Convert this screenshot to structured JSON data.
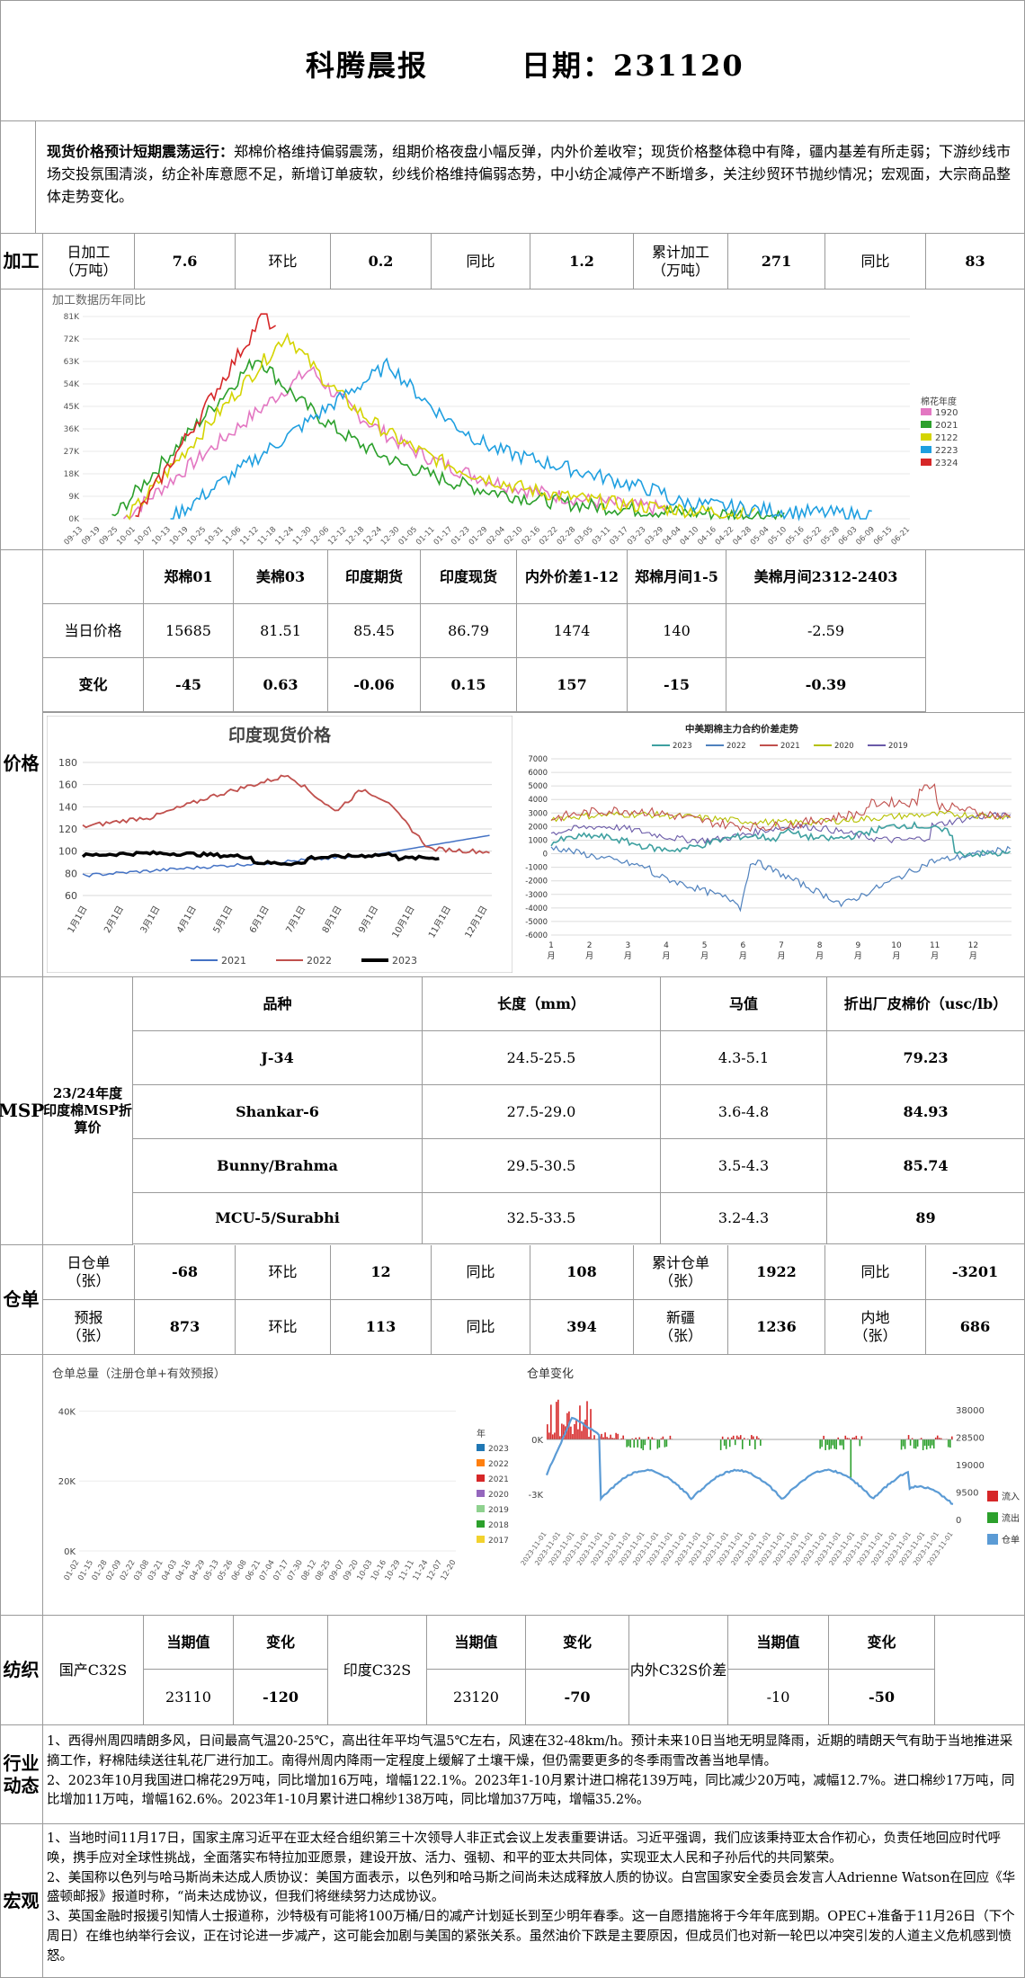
{
  "header": {
    "title": "科腾晨报",
    "date_label": "日期：231120"
  },
  "summary": {
    "lead": "现货价格预计短期震荡运行：",
    "text": "郑棉价格维持偏弱震荡，组期价格夜盘小幅反弹，内外价差收窄；现货价格整体稳中有降，疆内基差有所走弱；下游纱线市场交投氛围清淡，纺企补库意愿不足，新增订单疲软，纱线价格维持偏弱态势，中小纺企减停产不断增多，关注纱贸环节抛纱情况；宏观面，大宗商品整体走势变化。"
  },
  "processing": {
    "section": "加工",
    "cells": [
      "日加工\n（万吨）",
      "7.6",
      "环比",
      "0.2",
      "同比",
      "1.2",
      "累计加工\n（万吨）",
      "271",
      "同比",
      "83"
    ]
  },
  "processing_chart": {
    "title": "加工数据历年同比",
    "legend_title": "棉花年度",
    "y_ticks": [
      "81K",
      "72K",
      "63K",
      "54K",
      "45K",
      "36K",
      "27K",
      "18K",
      "9K",
      "0K"
    ],
    "x_ticks": [
      "09-13",
      "09-19",
      "09-25",
      "10-01",
      "10-07",
      "10-13",
      "10-19",
      "10-25",
      "10-31",
      "11-06",
      "11-12",
      "11-18",
      "11-24",
      "11-30",
      "12-06",
      "12-12",
      "12-18",
      "12-24",
      "12-30",
      "01-05",
      "01-11",
      "01-17",
      "01-23",
      "01-29",
      "02-04",
      "02-10",
      "02-16",
      "02-22",
      "02-28",
      "03-05",
      "03-11",
      "03-17",
      "03-23",
      "03-29",
      "04-04",
      "04-10",
      "04-16",
      "04-22",
      "04-28",
      "05-04",
      "05-10",
      "05-16",
      "05-22",
      "05-28",
      "06-03",
      "06-09",
      "06-15",
      "06-21"
    ],
    "series": [
      {
        "name": "1920",
        "color": "#e377c2"
      },
      {
        "name": "2021",
        "color": "#2ca02c"
      },
      {
        "name": "2122",
        "color": "#d4d400"
      },
      {
        "name": "2223",
        "color": "#1f9fe0"
      },
      {
        "name": "2324",
        "color": "#d62728"
      }
    ]
  },
  "price": {
    "section": "价格",
    "headers": [
      "",
      "郑棉01",
      "美棉03",
      "印度期货",
      "印度现货",
      "内外价差1-12",
      "郑棉月间1-5",
      "美棉月间2312-2403"
    ],
    "rows": [
      [
        "当日价格",
        "15685",
        "81.51",
        "85.45",
        "86.79",
        "1474",
        "140",
        "-2.59"
      ],
      [
        "变化",
        "-45",
        "0.63",
        "-0.06",
        "0.15",
        "157",
        "-15",
        "-0.39"
      ]
    ]
  },
  "india_chart": {
    "title": "印度现货价格",
    "y_ticks": [
      "180",
      "160",
      "140",
      "120",
      "100",
      "80",
      "60"
    ],
    "x_ticks": [
      "1月1日",
      "2月1日",
      "3月1日",
      "4月1日",
      "5月1日",
      "6月1日",
      "7月1日",
      "8月1日",
      "9月1日",
      "10月1日",
      "11月1日",
      "12月1日"
    ],
    "legend": [
      {
        "name": "2021",
        "color": "#4472c4"
      },
      {
        "name": "2022",
        "color": "#c0504d"
      },
      {
        "name": "2023",
        "color": "#000000"
      }
    ]
  },
  "spread_chart": {
    "title": "中美期棉主力合约价差走势",
    "legend": [
      {
        "name": "2023",
        "color": "#3ea0a0"
      },
      {
        "name": "2022",
        "color": "#4f81bd"
      },
      {
        "name": "2021",
        "color": "#c0504d"
      },
      {
        "name": "2020",
        "color": "#b5c000"
      },
      {
        "name": "2019",
        "color": "#6a5aa8"
      }
    ],
    "y_ticks": [
      "7000",
      "6000",
      "5000",
      "4000",
      "3000",
      "2000",
      "1000",
      "0",
      "-1000",
      "-2000",
      "-3000",
      "-4000",
      "-5000",
      "-6000"
    ],
    "x_ticks": [
      "1\n月",
      "2\n月",
      "3\n月",
      "4\n月",
      "5\n月",
      "6\n月",
      "7\n月",
      "8\n月",
      "9\n月",
      "10\n月",
      "11\n月",
      "12\n月"
    ]
  },
  "msp": {
    "section": "MSP",
    "label": "23/24年度\n印度棉MSP折\n算价",
    "headers": [
      "品种",
      "长度（mm）",
      "马值",
      "折出厂皮棉价（usc/lb）"
    ],
    "rows": [
      [
        "J-34",
        "24.5-25.5",
        "4.3-5.1",
        "79.23"
      ],
      [
        "Shankar-6",
        "27.5-29.0",
        "3.6-4.8",
        "84.93"
      ],
      [
        "Bunny/Brahma",
        "29.5-30.5",
        "3.5-4.3",
        "85.74"
      ],
      [
        "MCU-5/Surabhi",
        "32.5-33.5",
        "3.2-4.3",
        "89"
      ]
    ]
  },
  "warehouse": {
    "section": "仓单",
    "row1": [
      "日仓单\n（张）",
      "-68",
      "环比",
      "12",
      "同比",
      "108",
      "累计仓单\n（张）",
      "1922",
      "同比",
      "-3201"
    ],
    "row2": [
      "预报\n（张）",
      "873",
      "环比",
      "113",
      "同比",
      "394",
      "新疆\n（张）",
      "1236",
      "内地\n（张）",
      "686"
    ]
  },
  "warehouse_chart": {
    "title": "仓单总量（注册仓单+有效预报）",
    "legend_title": "年",
    "y_ticks": [
      "40K",
      "20K",
      "0K"
    ],
    "x_ticks": [
      "01-02",
      "01-15",
      "01-28",
      "02-09",
      "02-22",
      "03-08",
      "03-21",
      "04-03",
      "04-16",
      "04-29",
      "05-13",
      "05-26",
      "06-08",
      "06-21",
      "07-04",
      "07-17",
      "07-30",
      "08-12",
      "08-25",
      "09-07",
      "09-20",
      "10-03",
      "10-16",
      "10-29",
      "11-11",
      "11-24",
      "12-07",
      "12-20"
    ],
    "series": [
      {
        "name": "2023",
        "color": "#1f77b4"
      },
      {
        "name": "2022",
        "color": "#ff7f0e"
      },
      {
        "name": "2021",
        "color": "#d62728"
      },
      {
        "name": "2020",
        "color": "#9467bd"
      },
      {
        "name": "2019",
        "color": "#8fd18f"
      },
      {
        "name": "2018",
        "color": "#2ca02c"
      },
      {
        "name": "2017",
        "color": "#f2d22e"
      }
    ]
  },
  "change_chart": {
    "title": "仓单变化",
    "y_left": [
      "0K",
      "-3K"
    ],
    "y_right": [
      "38000",
      "28500",
      "19000",
      "9500",
      "0"
    ],
    "legend": [
      {
        "name": "流入",
        "color": "#d62728"
      },
      {
        "name": "流出",
        "color": "#2ca02c"
      },
      {
        "name": "仓单",
        "color": "#5b9bd5"
      }
    ]
  },
  "textile": {
    "section": "纺织",
    "labels": [
      "国产C32S",
      "印度C32S",
      "内外C32S价差"
    ],
    "headers": [
      "当期值",
      "变化",
      "当期值",
      "变化",
      "当期值",
      "变化"
    ],
    "values": [
      "23110",
      "-120",
      "23120",
      "-70",
      "-10",
      "-50"
    ]
  },
  "industry": {
    "section": "行业\n动态",
    "text": "1、西得州周四晴朗多风，日间最高气温20-25℃，高出往年平均气温5℃左右，风速在32-48km/h。预计未来10日当地无明显降雨，近期的晴朗天气有助于当地推进采摘工作，籽棉陆续送往轧花厂进行加工。南得州周内降雨一定程度上缓解了土壤干燥，但仍需要更多的冬季雨雪改善当地旱情。\n2、2023年10月我国进口棉花29万吨，同比增加16万吨，增幅122.1%。2023年1-10月累计进口棉花139万吨，同比减少20万吨，减幅12.7%。进口棉纱17万吨，同比增加11万吨，增幅162.6%。2023年1-10月累计进口棉纱138万吨，同比增加37万吨，增幅35.2%。"
  },
  "macro": {
    "section": "宏观",
    "text": "1、当地时间11月17日，国家主席习近平在亚太经合组织第三十次领导人非正式会议上发表重要讲话。习近平强调，我们应该秉持亚太合作初心，负责任地回应时代呼唤，携手应对全球性挑战，全面落实布特拉加亚愿景，建设开放、活力、强韧、和平的亚太共同体，实现亚太人民和子孙后代的共同繁荣。\n2、美国称以色列与哈马斯尚未达成人质协议：美国方面表示，以色列和哈马斯之间尚未达成释放人质的协议。白宫国家安全委员会发言人Adrienne Watson在回应《华盛顿邮报》报道时称，“尚未达成协议，但我们将继续努力达成协议。\n3、英国金融时报援引知情人士报道称，沙特极有可能将100万桶/日的减产计划延长到至少明年春季。这一自愿措施将于今年年底到期。OPEC+准备于11月26日（下个周日）在维也纳举行会议，正在讨论进一步减产，这可能会加剧与美国的紧张关系。虽然油价下跌是主要原因，但成员们也对新一轮巴以冲突引发的人道主义危机感到愤怒。"
  }
}
